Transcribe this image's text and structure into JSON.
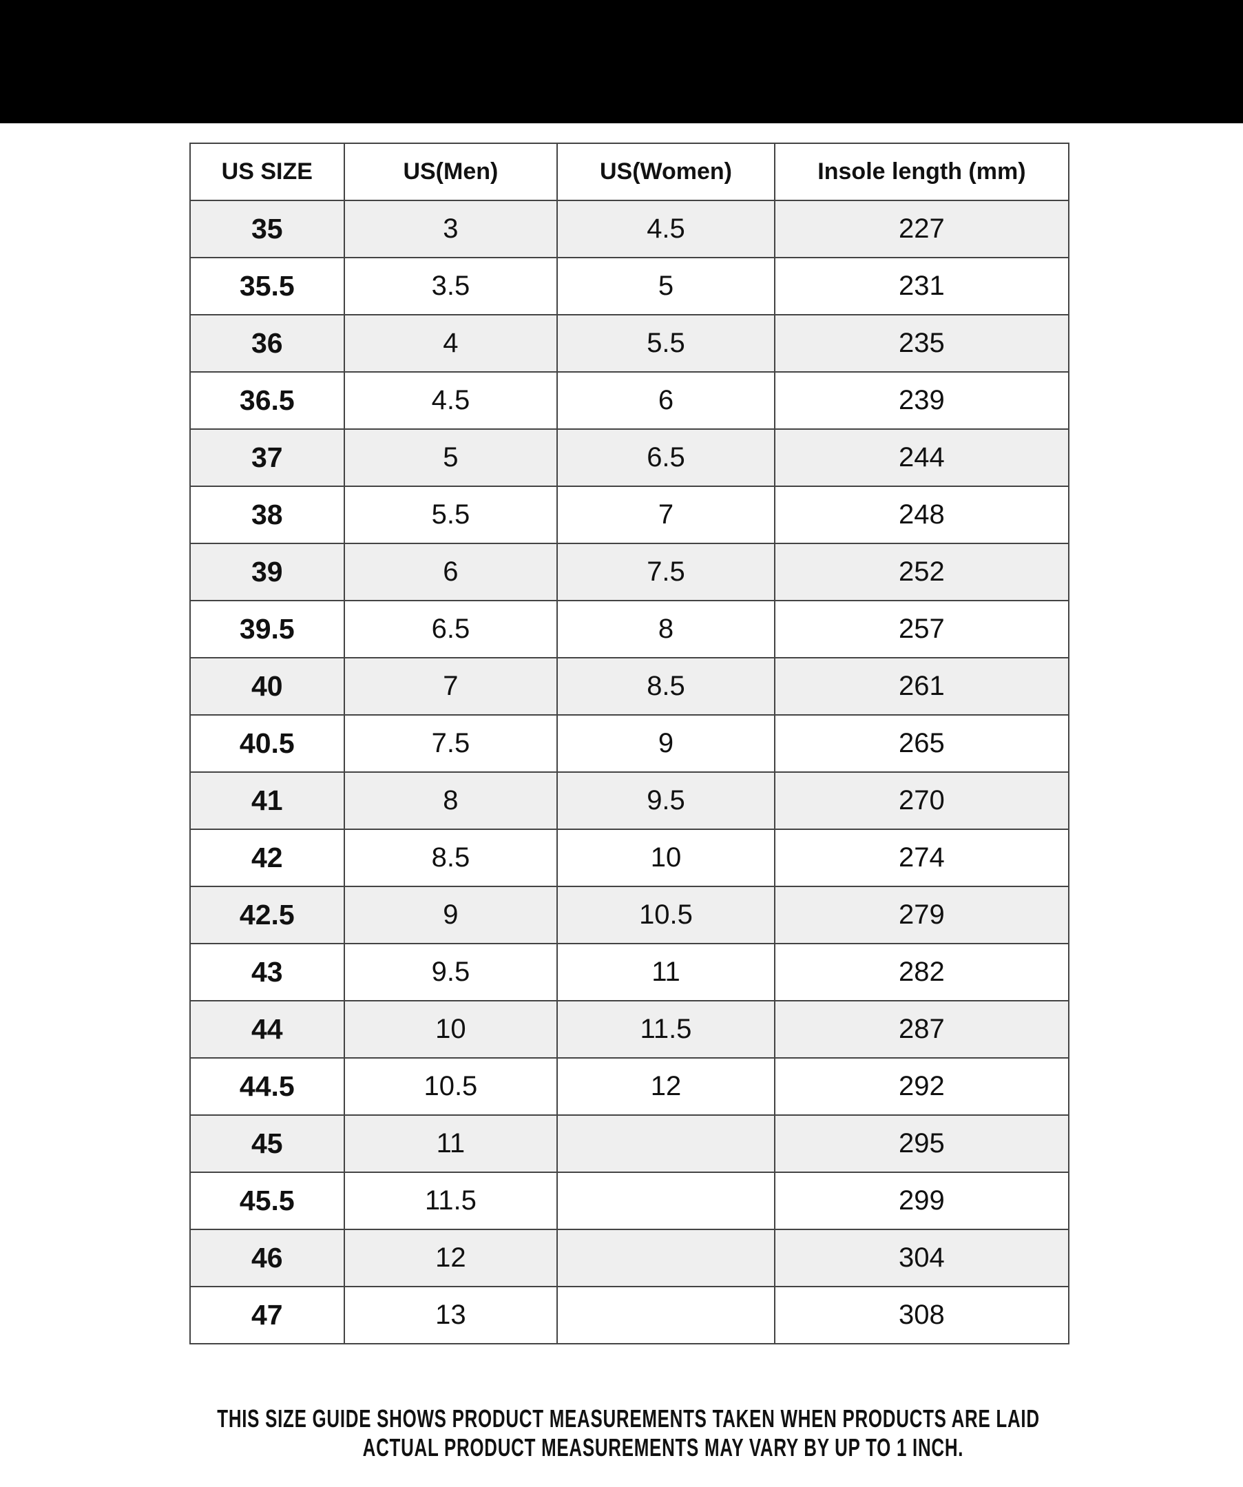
{
  "headers": [
    "US SIZE",
    "US(Men)",
    "US(Women)",
    "Insole length (mm)"
  ],
  "rows": [
    [
      "35",
      "3",
      "4.5",
      "227"
    ],
    [
      "35.5",
      "3.5",
      "5",
      "231"
    ],
    [
      "36",
      "4",
      "5.5",
      "235"
    ],
    [
      "36.5",
      "4.5",
      "6",
      "239"
    ],
    [
      "37",
      "5",
      "6.5",
      "244"
    ],
    [
      "38",
      "5.5",
      "7",
      "248"
    ],
    [
      "39",
      "6",
      "7.5",
      "252"
    ],
    [
      "39.5",
      "6.5",
      "8",
      "257"
    ],
    [
      "40",
      "7",
      "8.5",
      "261"
    ],
    [
      "40.5",
      "7.5",
      "9",
      "265"
    ],
    [
      "41",
      "8",
      "9.5",
      "270"
    ],
    [
      "42",
      "8.5",
      "10",
      "274"
    ],
    [
      "42.5",
      "9",
      "10.5",
      "279"
    ],
    [
      "43",
      "9.5",
      "11",
      "282"
    ],
    [
      "44",
      "10",
      "11.5",
      "287"
    ],
    [
      "44.5",
      "10.5",
      "12",
      "292"
    ],
    [
      "45",
      "11",
      "",
      "295"
    ],
    [
      "45.5",
      "11.5",
      "",
      "299"
    ],
    [
      "46",
      "12",
      "",
      "304"
    ],
    [
      "47",
      "13",
      "",
      "308"
    ]
  ],
  "footer": {
    "line1": "THIS SIZE GUIDE SHOWS PRODUCT MEASUREMENTS TAKEN WHEN PRODUCTS ARE LAID",
    "line2": "ACTUAL PRODUCT MEASUREMENTS MAY VARY BY UP TO 1 INCH."
  },
  "colors": {
    "shaded_row": "#efefef",
    "top_bar": "#000000"
  }
}
